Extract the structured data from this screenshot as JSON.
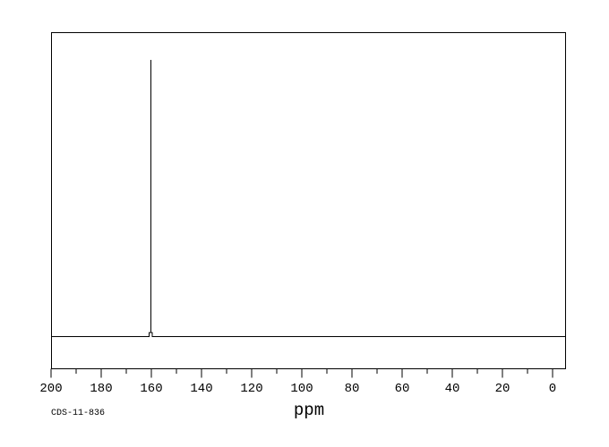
{
  "chart_data": {
    "type": "line",
    "subtype": "NMR spectrum trace",
    "title": "",
    "xlabel": "ppm",
    "ylabel": "",
    "sample_id": "CDS-11-836",
    "x_axis": {
      "min": 0,
      "max": 200,
      "reversed": true,
      "major_ticks": [
        200,
        180,
        160,
        140,
        120,
        100,
        80,
        60,
        40,
        20,
        0
      ],
      "major_tick_labels": [
        "200",
        "180",
        "160",
        "140",
        "120",
        "100",
        "80",
        "60",
        "40",
        "20",
        "0"
      ],
      "minor_tick_interval": 10
    },
    "y_axis": {
      "shown": false
    },
    "series": [
      {
        "name": "spectrum",
        "baseline_relative_intensity": 0.0,
        "peaks": [
          {
            "x_ppm": 160,
            "relative_height": 1.0
          }
        ]
      }
    ],
    "grid": false,
    "legend": false,
    "background_color": "#ffffff",
    "line_color": "#000000",
    "text_color": "#000000"
  }
}
